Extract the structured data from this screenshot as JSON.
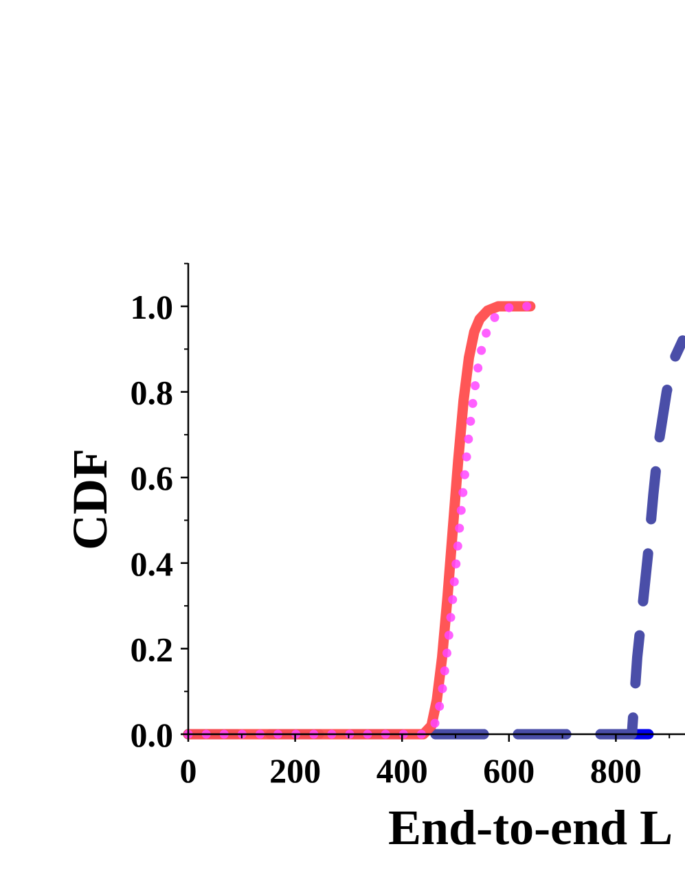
{
  "chart_data": {
    "type": "line",
    "title": "",
    "xlabel": "End-to-end L",
    "ylabel": "CDF",
    "xlim": [
      0,
      925
    ],
    "ylim": [
      0,
      1.1
    ],
    "x_ticks": [
      0,
      200,
      400,
      600,
      800
    ],
    "x_tick_labels": [
      "0",
      "200",
      "400",
      "600",
      "800"
    ],
    "y_ticks": [
      0.0,
      0.2,
      0.4,
      0.6,
      0.8,
      1.0
    ],
    "y_tick_labels": [
      "0.0",
      "0.2",
      "0.4",
      "0.6",
      "0.8",
      "1.0"
    ],
    "grid": false,
    "legend": "none",
    "series": [
      {
        "style": "solid",
        "color": "#ff4d4d",
        "x": [
          0,
          200,
          400,
          440,
          455,
          465,
          475,
          485,
          495,
          505,
          515,
          525,
          535,
          545,
          560,
          580,
          600,
          640
        ],
        "y": [
          0.0,
          0.0,
          0.0,
          0.0,
          0.02,
          0.08,
          0.18,
          0.32,
          0.48,
          0.64,
          0.78,
          0.88,
          0.94,
          0.97,
          0.99,
          1.0,
          1.0,
          1.0
        ]
      },
      {
        "style": "dotted",
        "color": "#ff44ff",
        "x": [
          0,
          440,
          465,
          475,
          485,
          495,
          505,
          515,
          525,
          535,
          545,
          555,
          565,
          580,
          595,
          610,
          640
        ],
        "y": [
          0.0,
          0.0,
          0.03,
          0.1,
          0.2,
          0.32,
          0.45,
          0.58,
          0.7,
          0.8,
          0.88,
          0.93,
          0.96,
          0.985,
          0.995,
          1.0,
          1.0
        ]
      },
      {
        "style": "dashed",
        "color": "#4a4ea8",
        "x": [
          0,
          600,
          700,
          800,
          830,
          840,
          850,
          860,
          870,
          880,
          895,
          910,
          925
        ],
        "y": [
          0.0,
          0.0,
          0.0,
          0.0,
          0.0,
          0.18,
          0.3,
          0.42,
          0.56,
          0.68,
          0.8,
          0.88,
          0.92
        ]
      },
      {
        "style": "dashed",
        "color": "#0000ee",
        "x": [
          0,
          500,
          600,
          700,
          800,
          900,
          925
        ],
        "y": [
          0.0,
          0.0,
          0.0,
          0.0,
          0.0,
          0.0,
          0.0
        ]
      }
    ]
  }
}
